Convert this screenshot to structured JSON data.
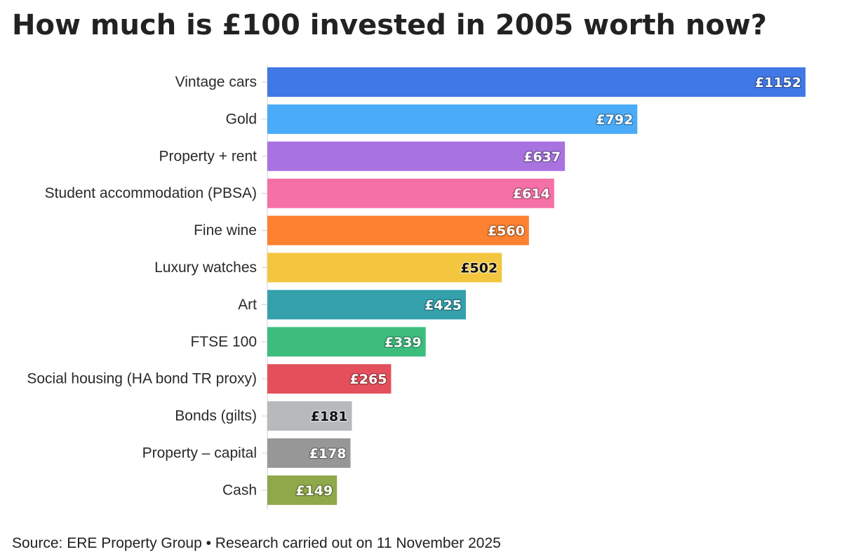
{
  "title": "How much is £100 invested in 2005 worth now?",
  "source": "Source: ERE Property Group • Research carried out on 11 November 2025",
  "chart_data": {
    "type": "bar",
    "orientation": "horizontal",
    "title": "How much is £100 invested in 2005 worth now?",
    "xlabel": "",
    "ylabel": "",
    "xlim": [
      0,
      1152
    ],
    "grid": false,
    "legend": "none",
    "value_prefix": "£",
    "categories": [
      "Vintage cars",
      "Gold",
      "Property + rent",
      "Student accommodation (PBSA)",
      "Fine wine",
      "Luxury watches",
      "Art",
      "FTSE 100",
      "Social housing (HA bond TR proxy)",
      "Bonds (gilts)",
      "Property – capital",
      "Cash"
    ],
    "values": [
      1152,
      792,
      637,
      614,
      560,
      502,
      425,
      339,
      265,
      181,
      178,
      149
    ],
    "value_labels": [
      "£1152",
      "£792",
      "£637",
      "£614",
      "£560",
      "£502",
      "£425",
      "£339",
      "£265",
      "£181",
      "£178",
      "£149"
    ],
    "colors": [
      "#4078e6",
      "#4aabf8",
      "#a872e0",
      "#f570a6",
      "#fd8131",
      "#f4c63f",
      "#34a0ac",
      "#3cbd7d",
      "#e3505b",
      "#b7babd",
      "#979797",
      "#8fa84a"
    ],
    "label_colors": [
      "#ffffff",
      "#ffffff",
      "#ffffff",
      "#ffffff",
      "#ffffff",
      "#111111",
      "#ffffff",
      "#ffffff",
      "#ffffff",
      "#111111",
      "#ffffff",
      "#ffffff"
    ]
  }
}
